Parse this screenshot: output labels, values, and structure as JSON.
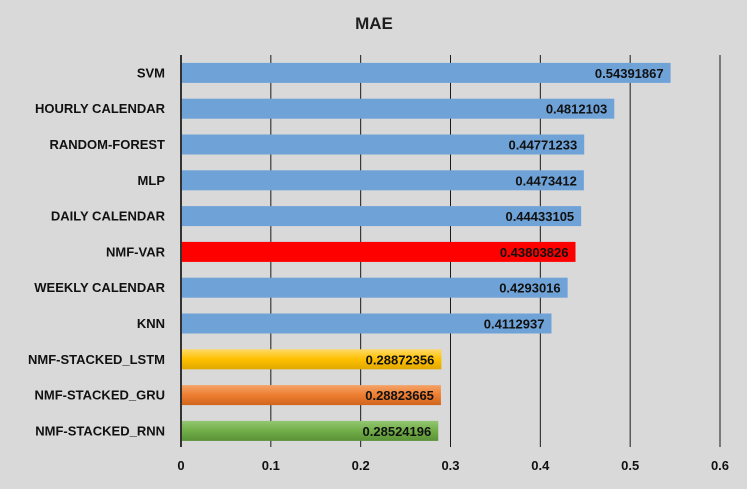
{
  "chart_data": {
    "type": "bar",
    "orientation": "horizontal",
    "title": "MAE",
    "xlabel": "",
    "ylabel": "",
    "xlim": [
      0,
      0.6
    ],
    "ticks": [
      "0",
      "0.1",
      "0.2",
      "0.3",
      "0.4",
      "0.5",
      "0.6"
    ],
    "tick_values": [
      0,
      0.1,
      0.2,
      0.3,
      0.4,
      0.5,
      0.6
    ],
    "grid": "vertical",
    "legend": "none",
    "categories": [
      "SVM",
      "HOURLY CALENDAR",
      "RANDOM-FOREST",
      "MLP",
      "DAILY CALENDAR",
      "NMF-VAR",
      "WEEKLY CALENDAR",
      "KNN",
      "NMF-STACKED_LSTM",
      "NMF-STACKED_GRU",
      "NMF-STACKED_RNN"
    ],
    "values": [
      0.54391867,
      0.4812103,
      0.44771233,
      0.4473412,
      0.44433105,
      0.43803826,
      0.4293016,
      0.4112937,
      0.28872356,
      0.28823665,
      0.28524196
    ],
    "value_labels": [
      "0.54391867",
      "0.4812103",
      "0.44771233",
      "0.4473412",
      "0.44433105",
      "0.43803826",
      "0.4293016",
      "0.4112937",
      "0.28872356",
      "0.28823665",
      "0.28524196"
    ],
    "colors": [
      "#6fa3d8",
      "#6fa3d8",
      "#6fa3d8",
      "#6fa3d8",
      "#6fa3d8",
      "#ff0000",
      "#6fa3d8",
      "#6fa3d8",
      "#ffc000",
      "#ed7d31",
      "#70ad47"
    ]
  }
}
